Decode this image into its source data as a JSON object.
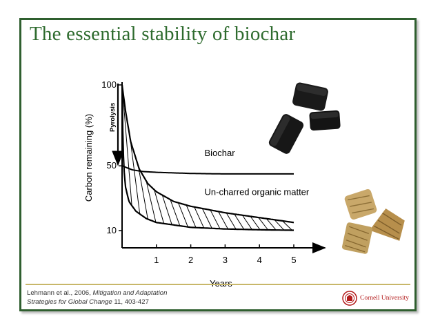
{
  "title": "The essential stability of biochar",
  "citation": {
    "authors": "Lehmann et al., 2006,",
    "journal_part1": "Mitigation and Adaptation",
    "journal_part2": "Strategies for Global Change",
    "volume_pages": "11, 403-427"
  },
  "logo": {
    "text": "Cornell University",
    "icon": "cornell-seal-icon"
  },
  "images": [
    {
      "name": "biochar-pieces-image",
      "description_icon": "black-charcoal-pieces"
    },
    {
      "name": "uncharred-wood-pieces-image",
      "description_icon": "tan-wood-pieces"
    }
  ],
  "colors": {
    "title": "#2e6b2e",
    "frame": "#2f5f2f",
    "footer_line": "#c8b76a",
    "logo": "#b31b1b"
  },
  "chart_data": {
    "type": "line",
    "xlabel": "Years",
    "ylabel": "Carbon remaining (%)",
    "xlim": [
      0,
      5.5
    ],
    "ylim": [
      0,
      100
    ],
    "xticks": [
      1,
      2,
      3,
      4,
      5
    ],
    "yticks": [
      10,
      50,
      100
    ],
    "annotations": [
      "Pyrolysis"
    ],
    "series": [
      {
        "name": "Biochar",
        "x": [
          0,
          0.3,
          0.6,
          1,
          2,
          3,
          4,
          5
        ],
        "y": [
          50,
          47.5,
          46.5,
          46,
          45.3,
          45,
          45,
          45
        ]
      },
      {
        "name": "Un-charred organic matter",
        "bound": "upper",
        "x": [
          0,
          0.1,
          0.25,
          0.5,
          0.75,
          1,
          1.5,
          2,
          3,
          4,
          5
        ],
        "y": [
          100,
          84,
          65,
          48,
          39,
          34,
          28,
          25,
          21,
          18,
          15
        ]
      },
      {
        "name": "Un-charred organic matter",
        "bound": "lower",
        "x": [
          0,
          0.02,
          0.05,
          0.1,
          0.2,
          0.4,
          0.7,
          1,
          2,
          3,
          4,
          5
        ],
        "y": [
          100,
          72,
          49,
          37,
          28,
          22,
          17.5,
          15,
          12,
          11,
          10.5,
          10.2
        ]
      }
    ]
  }
}
